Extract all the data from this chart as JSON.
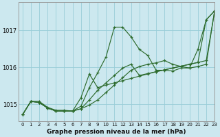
{
  "title": "Graphe pression niveau de la mer (hPa)",
  "background_color": "#cce8ef",
  "grid_color": "#99cdd8",
  "line_color": "#2d6b2d",
  "xlim": [
    -0.5,
    23
  ],
  "ylim": [
    1014.55,
    1017.75
  ],
  "yticks": [
    1015,
    1016,
    1017
  ],
  "xticks": [
    0,
    1,
    2,
    3,
    4,
    5,
    6,
    7,
    8,
    9,
    10,
    11,
    12,
    13,
    14,
    15,
    16,
    17,
    18,
    19,
    20,
    21,
    22,
    23
  ],
  "series": [
    [
      1014.72,
      1015.08,
      1015.08,
      1014.92,
      1014.84,
      1014.84,
      1014.82,
      1014.95,
      1015.45,
      1015.85,
      1016.28,
      1017.08,
      1017.08,
      1016.82,
      1016.48,
      1016.32,
      1015.92,
      1015.92,
      1015.9,
      1015.98,
      1015.98,
      1016.48,
      1017.28,
      1017.52
    ],
    [
      1014.72,
      1015.08,
      1015.05,
      1014.9,
      1014.82,
      1014.82,
      1014.82,
      1015.18,
      1015.82,
      1015.45,
      1015.52,
      1015.58,
      1015.64,
      1015.7,
      1015.76,
      1015.82,
      1015.88,
      1015.93,
      1015.98,
      1016.03,
      1016.08,
      1016.13,
      1016.18,
      1017.5
    ],
    [
      1014.72,
      1015.08,
      1015.05,
      1014.9,
      1014.82,
      1014.82,
      1014.82,
      1014.88,
      1015.12,
      1015.38,
      1015.58,
      1015.78,
      1015.98,
      1016.08,
      1015.78,
      1015.83,
      1015.88,
      1015.93,
      1015.98,
      1016.03,
      1016.08,
      1016.13,
      1017.28,
      1017.52
    ],
    [
      1014.72,
      1015.08,
      1015.05,
      1014.9,
      1014.82,
      1014.82,
      1014.82,
      1014.88,
      1014.98,
      1015.12,
      1015.32,
      1015.52,
      1015.72,
      1015.92,
      1016.02,
      1016.08,
      1016.12,
      1016.18,
      1016.08,
      1016.02,
      1015.98,
      1016.02,
      1016.08,
      1017.52
    ]
  ]
}
